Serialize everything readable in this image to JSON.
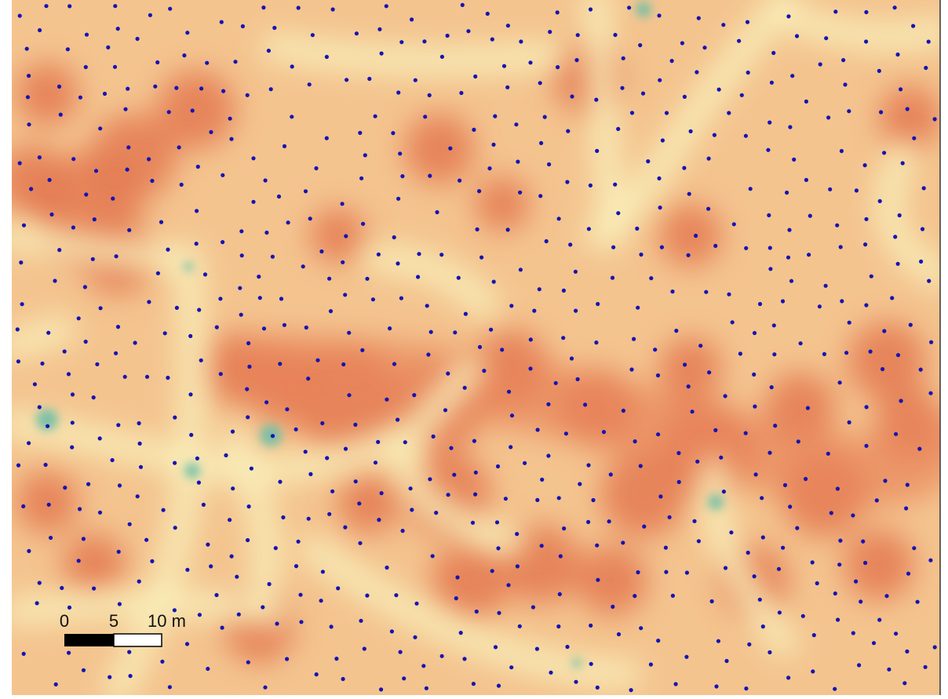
{
  "scale_bar": {
    "labels": [
      "0",
      "5",
      "10 m"
    ]
  }
}
